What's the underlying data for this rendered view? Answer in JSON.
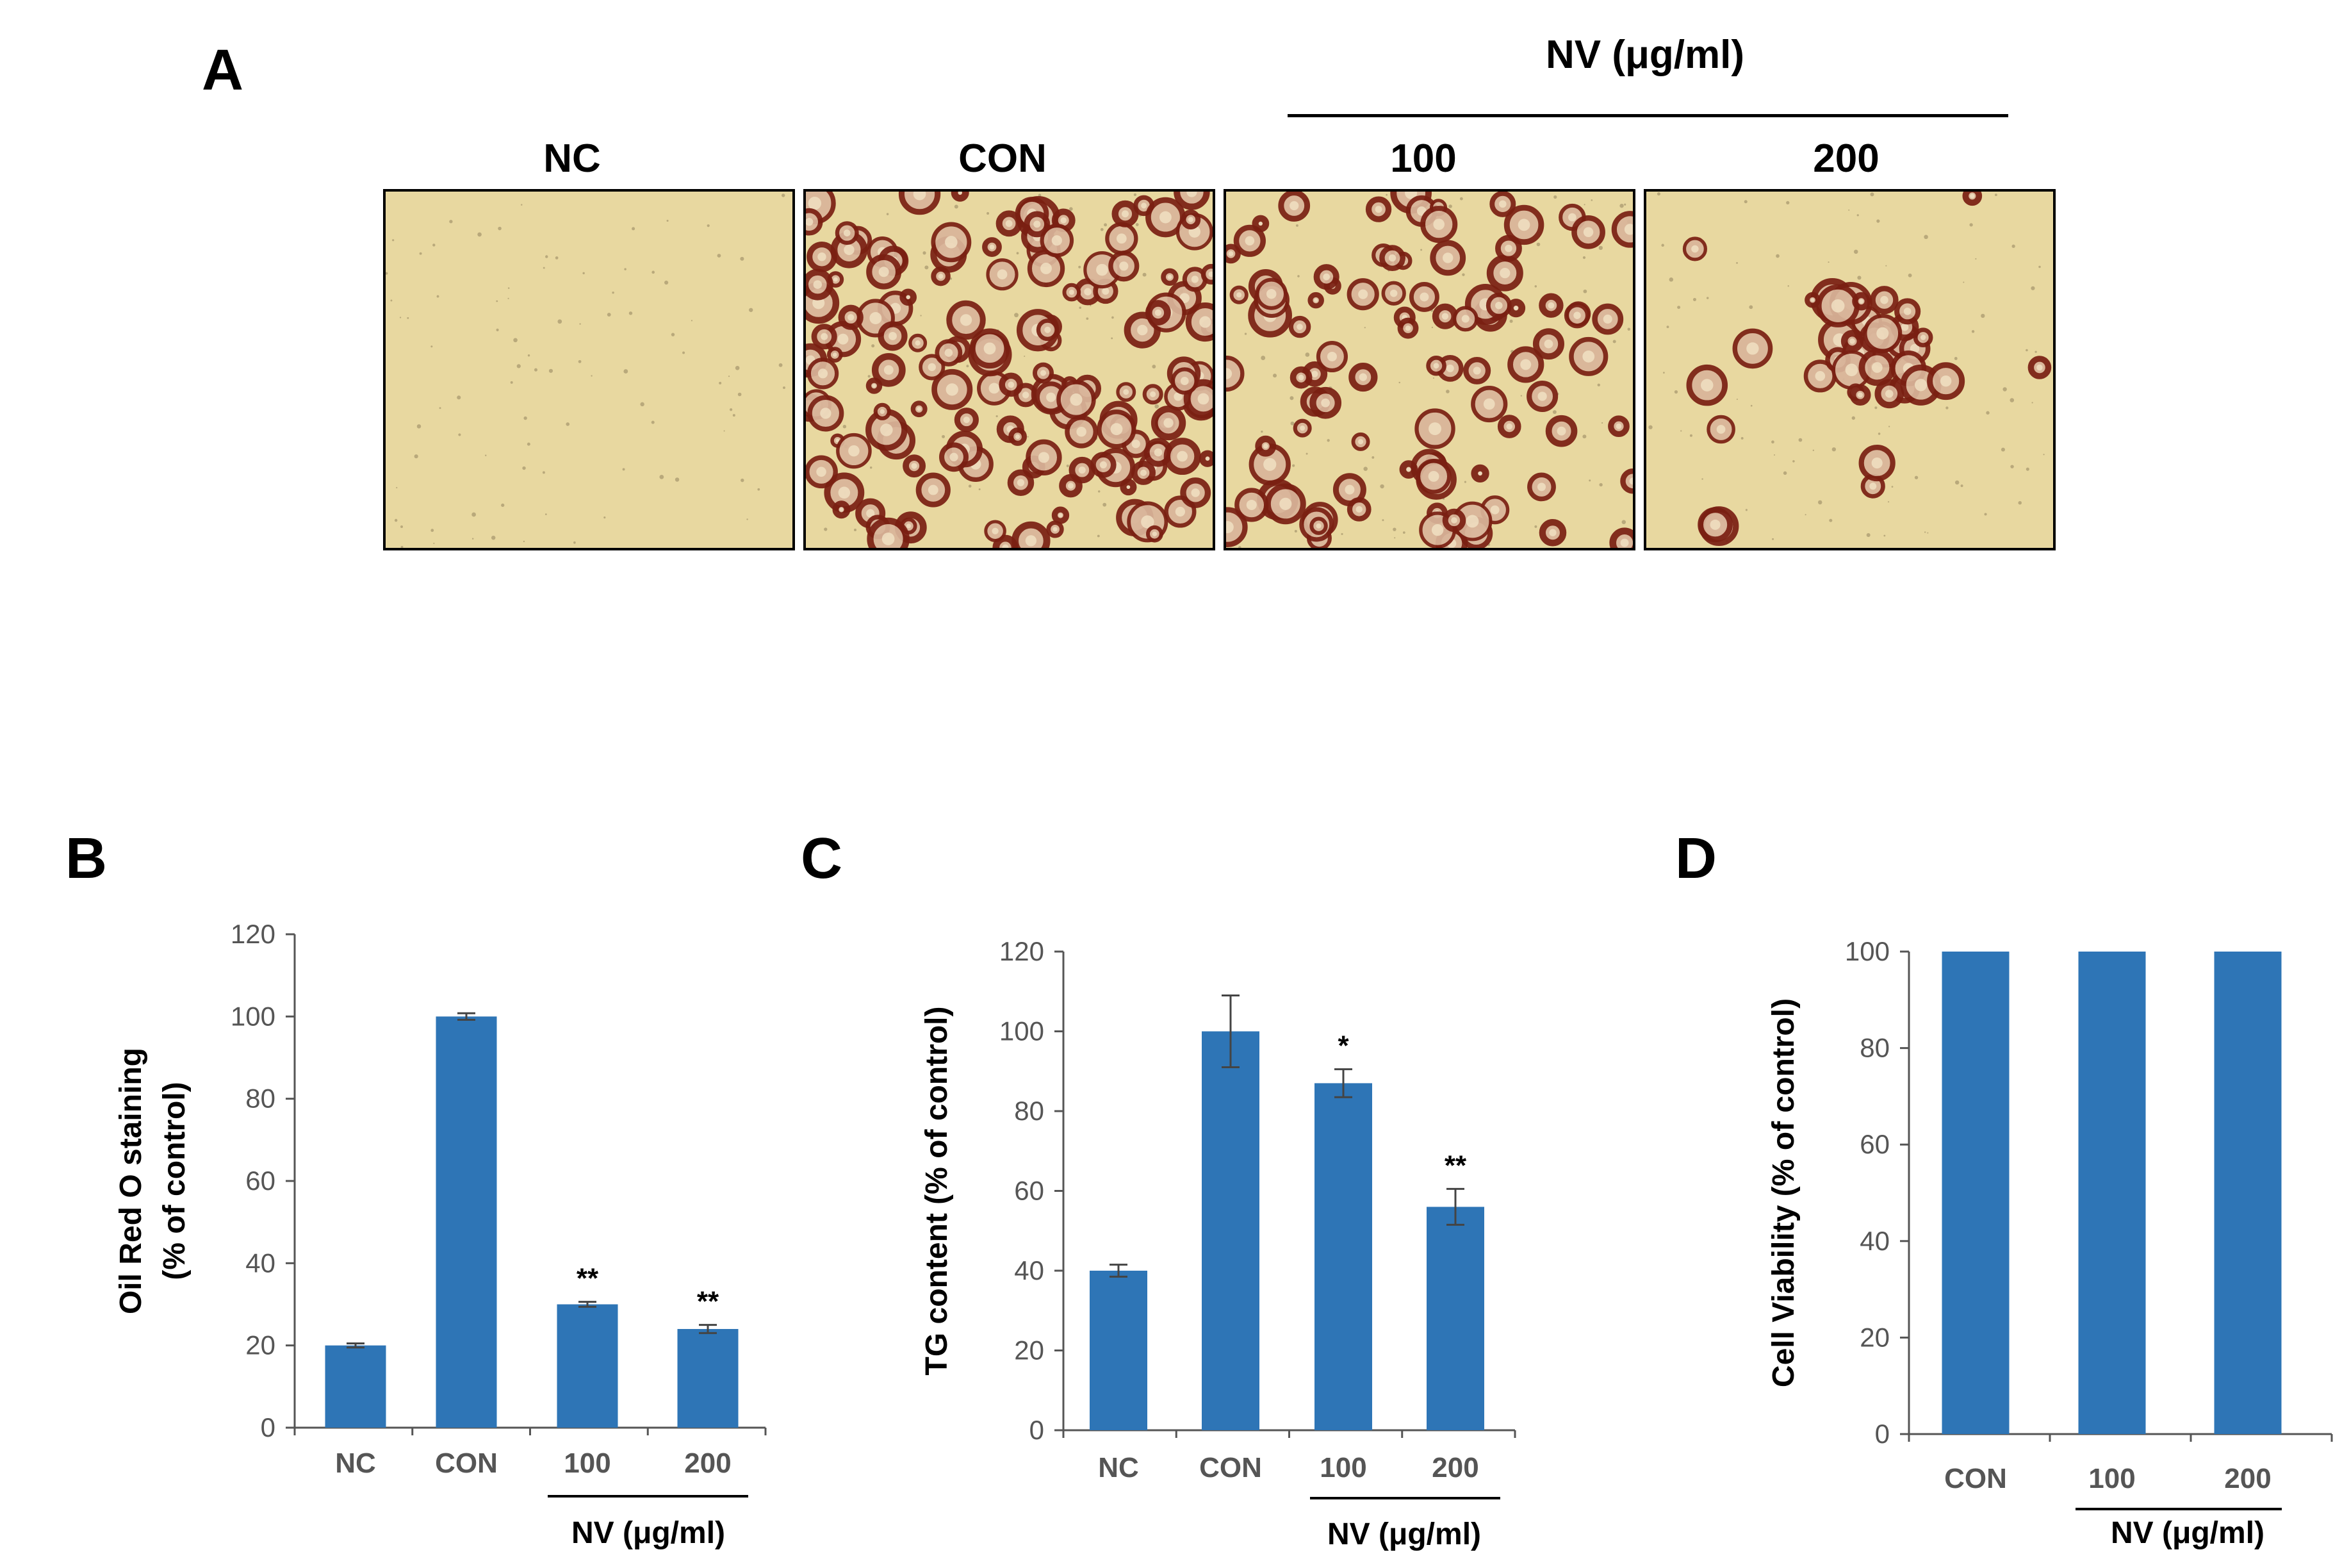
{
  "panel_a": {
    "letter": "A",
    "group_label": "NV (μg/ml)",
    "images": [
      {
        "label": "NC",
        "density": "none"
      },
      {
        "label": "CON",
        "density": "high"
      },
      {
        "label": "100",
        "density": "medium"
      },
      {
        "label": "200",
        "density": "low"
      }
    ],
    "colors": {
      "background": "#e8d8a0",
      "droplet": "#7a1f12"
    }
  },
  "chart_data": [
    {
      "panel": "B",
      "type": "bar",
      "categories": [
        "NC",
        "CON",
        "100",
        "200"
      ],
      "values": [
        20,
        100,
        30,
        24
      ],
      "errors": [
        0.5,
        0.8,
        0.6,
        1.0
      ],
      "significance": [
        "",
        "",
        "**",
        "**"
      ],
      "ylabel_lines": [
        "Oil Red O staining",
        "(% of control)"
      ],
      "ylim": [
        0,
        120
      ],
      "yticks": [
        0,
        20,
        40,
        60,
        80,
        100,
        120
      ],
      "group_label": "NV (μg/ml)",
      "grouped_categories": [
        "100",
        "200"
      ],
      "bar_color": "#2e75b6",
      "grid": false
    },
    {
      "panel": "C",
      "type": "bar",
      "categories": [
        "NC",
        "CON",
        "100",
        "200"
      ],
      "values": [
        40,
        100,
        87,
        56
      ],
      "errors": [
        1.5,
        9,
        3.5,
        4.5
      ],
      "significance": [
        "",
        "",
        "*",
        "**"
      ],
      "ylabel_lines": [
        "TG content (% of control)"
      ],
      "ylim": [
        0,
        120
      ],
      "yticks": [
        0,
        20,
        40,
        60,
        80,
        100,
        120
      ],
      "group_label": "NV (μg/ml)",
      "grouped_categories": [
        "100",
        "200"
      ],
      "bar_color": "#2e75b6",
      "grid": false
    },
    {
      "panel": "D",
      "type": "bar",
      "categories": [
        "CON",
        "100",
        "200"
      ],
      "values": [
        100,
        100,
        100
      ],
      "errors": [
        0,
        0,
        0
      ],
      "significance": [
        "",
        "",
        ""
      ],
      "ylabel_lines": [
        "Cell Viability (% of control)"
      ],
      "ylim": [
        0,
        100
      ],
      "yticks": [
        0,
        20,
        40,
        60,
        80,
        100
      ],
      "group_label": "NV (μg/ml)",
      "grouped_categories": [
        "100",
        "200"
      ],
      "bar_color": "#2e75b6",
      "grid": false
    }
  ]
}
